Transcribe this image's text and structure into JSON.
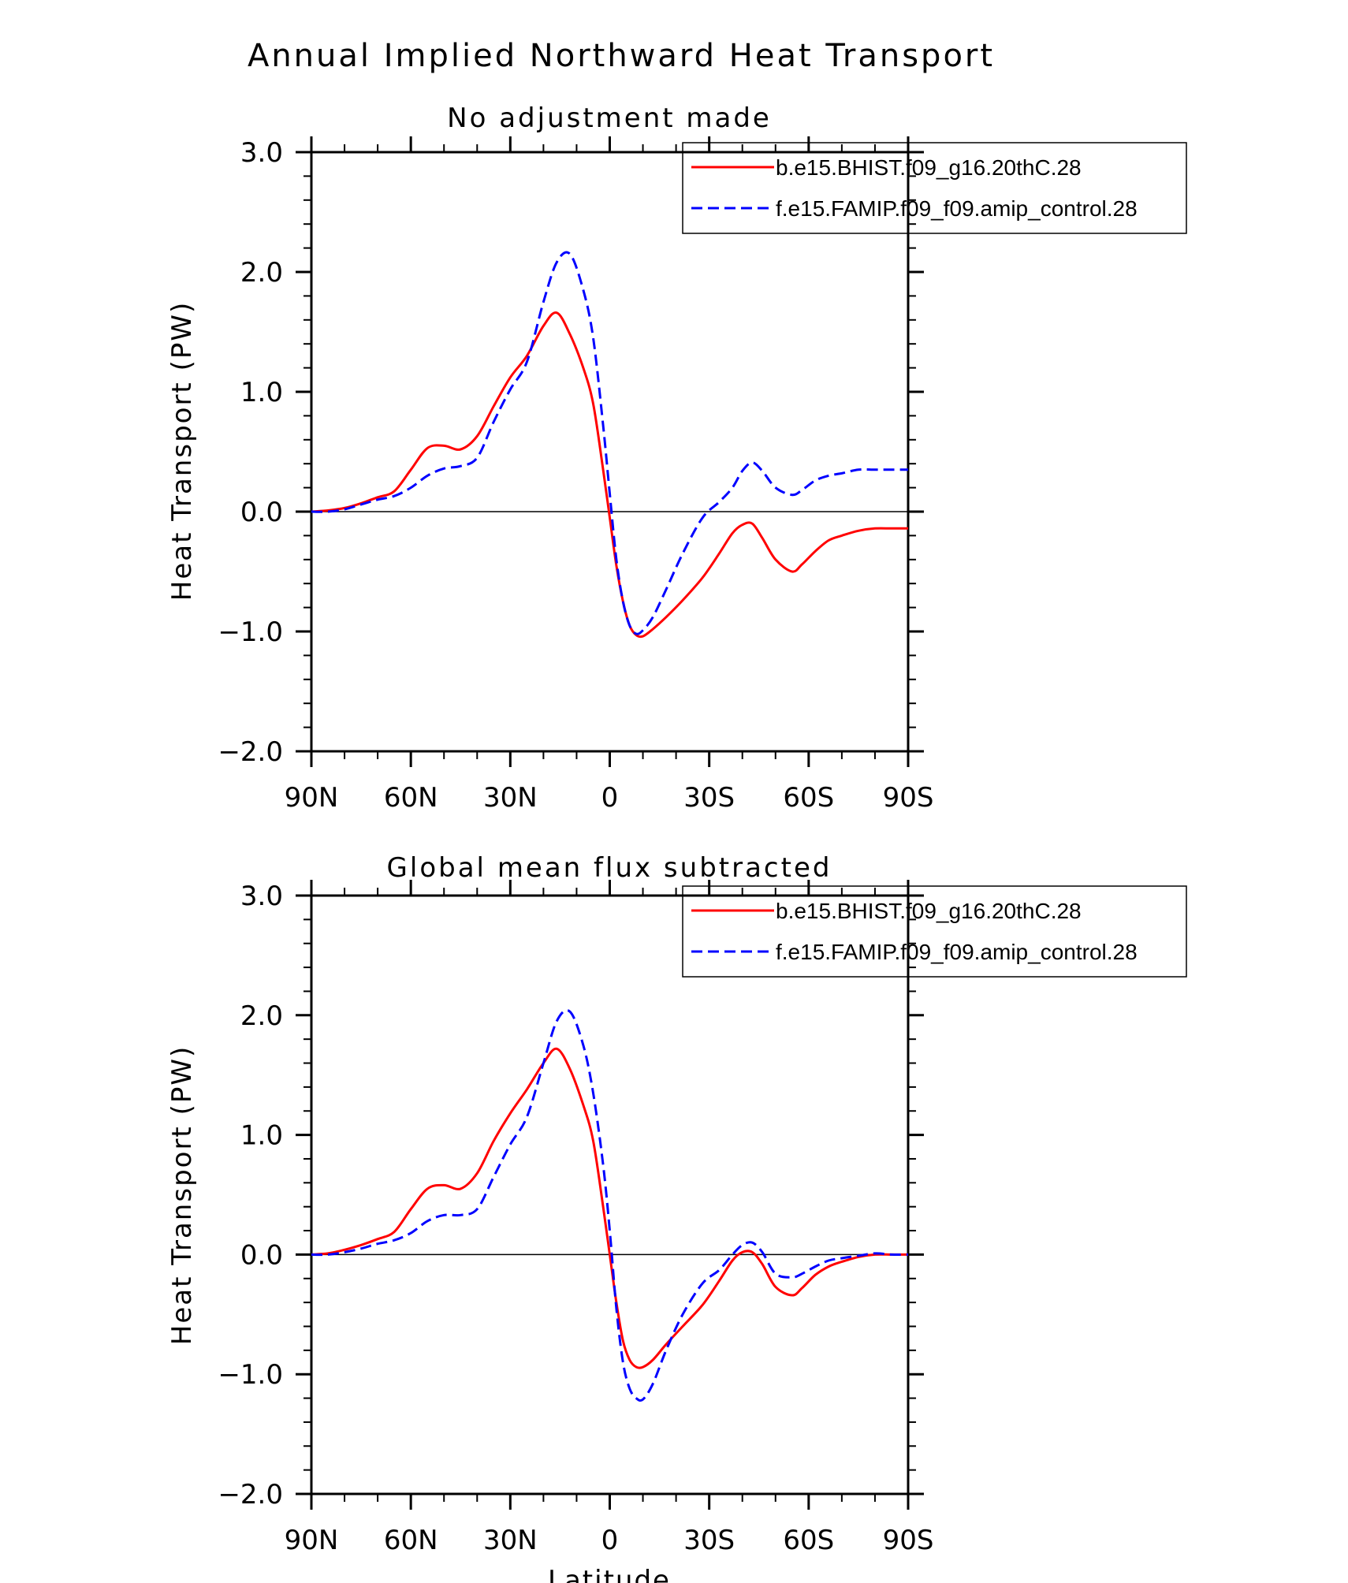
{
  "figure": {
    "title": "Annual Implied Northward Heat Transport"
  },
  "chart_data": [
    {
      "type": "line",
      "title": "No adjustment made",
      "xlabel": "",
      "ylabel": "Heat Transport (PW)",
      "xlim": [
        90,
        -90
      ],
      "ylim": [
        -2.0,
        3.0
      ],
      "x_ticks": [
        90,
        60,
        30,
        0,
        -30,
        -60,
        -90
      ],
      "x_tick_labels": [
        "90N",
        "60N",
        "30N",
        "0",
        "30S",
        "60S",
        "90S"
      ],
      "y_ticks": [
        3.0,
        2.0,
        1.0,
        0.0,
        -1.0,
        -2.0
      ],
      "y_tick_labels": [
        "3.0",
        "2.0",
        "1.0",
        "0.0",
        "−1.0",
        "−2.0"
      ],
      "grid": false,
      "legend_position": "top-right",
      "series": [
        {
          "name": "b.e15.BHIST.f09_g16.20thC.28",
          "color": "#ff0000",
          "dash": "solid",
          "x": [
            90,
            85,
            80,
            75,
            70,
            65,
            60,
            55,
            50,
            45,
            40,
            35,
            30,
            25,
            20,
            16,
            12,
            8,
            5,
            2,
            0,
            -2,
            -4,
            -6,
            -8,
            -10,
            -13,
            -17,
            -22,
            -28,
            -33,
            -37,
            -40,
            -43,
            -46,
            -50,
            -55,
            -58,
            -62,
            -66,
            -70,
            -75,
            -80,
            -85,
            -90
          ],
          "y": [
            0.0,
            0.01,
            0.03,
            0.07,
            0.12,
            0.17,
            0.35,
            0.53,
            0.55,
            0.52,
            0.63,
            0.88,
            1.12,
            1.3,
            1.55,
            1.66,
            1.48,
            1.2,
            0.9,
            0.35,
            -0.05,
            -0.45,
            -0.75,
            -0.95,
            -1.03,
            -1.04,
            -0.98,
            -0.88,
            -0.74,
            -0.55,
            -0.35,
            -0.18,
            -0.11,
            -0.1,
            -0.22,
            -0.4,
            -0.5,
            -0.44,
            -0.33,
            -0.24,
            -0.2,
            -0.16,
            -0.14,
            -0.14,
            -0.14
          ]
        },
        {
          "name": "f.e15.FAMIP.f09_f09.amip_control.28",
          "color": "#0000ff",
          "dash": "dashed",
          "x": [
            90,
            85,
            80,
            75,
            70,
            65,
            60,
            55,
            50,
            45,
            40,
            35,
            30,
            25,
            20,
            16,
            12,
            8,
            5,
            2,
            0,
            -2,
            -4,
            -6,
            -8,
            -10,
            -13,
            -17,
            -22,
            -28,
            -33,
            -37,
            -40,
            -43,
            -46,
            -50,
            -55,
            -58,
            -62,
            -66,
            -70,
            -75,
            -80,
            -85,
            -90
          ],
          "y": [
            0.0,
            0.0,
            0.02,
            0.06,
            0.1,
            0.13,
            0.2,
            0.3,
            0.36,
            0.38,
            0.45,
            0.75,
            1.02,
            1.25,
            1.75,
            2.08,
            2.15,
            1.85,
            1.45,
            0.72,
            0.15,
            -0.4,
            -0.75,
            -0.95,
            -1.02,
            -0.99,
            -0.88,
            -0.65,
            -0.35,
            -0.05,
            0.08,
            0.2,
            0.34,
            0.41,
            0.34,
            0.2,
            0.14,
            0.18,
            0.26,
            0.3,
            0.32,
            0.35,
            0.35,
            0.35,
            0.35
          ]
        }
      ]
    },
    {
      "type": "line",
      "title": "Global mean flux subtracted",
      "xlabel": "Latitude",
      "ylabel": "Heat Transport (PW)",
      "xlim": [
        90,
        -90
      ],
      "ylim": [
        -2.0,
        3.0
      ],
      "x_ticks": [
        90,
        60,
        30,
        0,
        -30,
        -60,
        -90
      ],
      "x_tick_labels": [
        "90N",
        "60N",
        "30N",
        "0",
        "30S",
        "60S",
        "90S"
      ],
      "y_ticks": [
        3.0,
        2.0,
        1.0,
        0.0,
        -1.0,
        -2.0
      ],
      "y_tick_labels": [
        "3.0",
        "2.0",
        "1.0",
        "0.0",
        "−1.0",
        "−2.0"
      ],
      "grid": false,
      "legend_position": "top-right",
      "series": [
        {
          "name": "b.e15.BHIST.f09_g16.20thC.28",
          "color": "#ff0000",
          "dash": "solid",
          "x": [
            90,
            85,
            80,
            75,
            70,
            65,
            60,
            55,
            50,
            45,
            40,
            35,
            30,
            25,
            20,
            16,
            12,
            8,
            5,
            2,
            0,
            -2,
            -4,
            -6,
            -8,
            -10,
            -13,
            -17,
            -22,
            -28,
            -33,
            -37,
            -40,
            -43,
            -46,
            -50,
            -55,
            -58,
            -62,
            -66,
            -70,
            -75,
            -80,
            -85,
            -90
          ],
          "y": [
            0.0,
            0.01,
            0.04,
            0.08,
            0.13,
            0.19,
            0.38,
            0.55,
            0.58,
            0.55,
            0.68,
            0.95,
            1.18,
            1.38,
            1.6,
            1.72,
            1.55,
            1.25,
            0.95,
            0.4,
            0.0,
            -0.4,
            -0.72,
            -0.88,
            -0.94,
            -0.94,
            -0.88,
            -0.75,
            -0.6,
            -0.42,
            -0.22,
            -0.05,
            0.02,
            0.02,
            -0.08,
            -0.27,
            -0.34,
            -0.28,
            -0.17,
            -0.1,
            -0.06,
            -0.02,
            0.0,
            0.0,
            0.0
          ]
        },
        {
          "name": "f.e15.FAMIP.f09_f09.amip_control.28",
          "color": "#0000ff",
          "dash": "dashed",
          "x": [
            90,
            85,
            80,
            75,
            70,
            65,
            60,
            55,
            50,
            45,
            40,
            35,
            30,
            25,
            20,
            16,
            12,
            8,
            5,
            2,
            0,
            -2,
            -4,
            -6,
            -8,
            -10,
            -13,
            -17,
            -22,
            -28,
            -33,
            -37,
            -40,
            -43,
            -46,
            -50,
            -55,
            -58,
            -62,
            -66,
            -70,
            -75,
            -80,
            -85,
            -90
          ],
          "y": [
            0.0,
            0.0,
            0.02,
            0.05,
            0.09,
            0.12,
            0.18,
            0.28,
            0.33,
            0.33,
            0.38,
            0.65,
            0.92,
            1.15,
            1.6,
            1.95,
            2.03,
            1.75,
            1.35,
            0.75,
            0.2,
            -0.45,
            -0.9,
            -1.12,
            -1.2,
            -1.21,
            -1.08,
            -0.8,
            -0.5,
            -0.24,
            -0.13,
            0.0,
            0.08,
            0.1,
            0.02,
            -0.16,
            -0.19,
            -0.16,
            -0.1,
            -0.05,
            -0.03,
            -0.01,
            0.01,
            0.0,
            0.0
          ]
        }
      ]
    }
  ]
}
